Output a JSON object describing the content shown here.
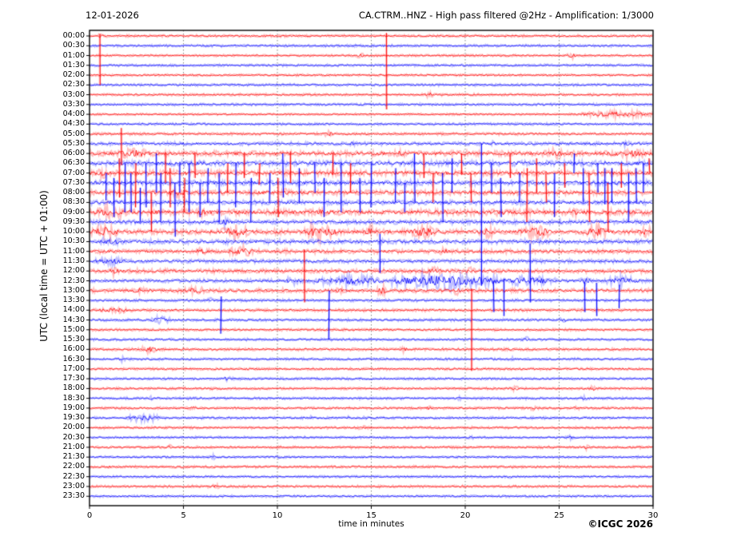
{
  "header": {
    "date": "12-01-2026",
    "title": "CA.CTRM..HNZ - High pass filtered @2Hz - Amplification: 1/3000"
  },
  "footer": {
    "copyright": "©ICGC 2026"
  },
  "axes": {
    "x_label": "time in minutes",
    "y_label": "UTC (local time = UTC + 01:00)",
    "x_ticks": [
      0,
      5,
      10,
      15,
      20,
      25,
      30
    ],
    "x_range": [
      0,
      30
    ],
    "grid_minutes": [
      5,
      10,
      15,
      20,
      25
    ],
    "grid_style": "dotted-vertical"
  },
  "colors": {
    "red": "#ff0000",
    "blue": "#0000ff",
    "axis": "#000000",
    "grid": "#666666",
    "background": "#ffffff"
  },
  "chart_data": {
    "type": "line",
    "subtype": "helicorder-seismogram",
    "station": "CA.CTRM..HNZ",
    "filter": "High pass filtered @2Hz",
    "amplification": "1/3000",
    "date": "12-01-2026",
    "minutes_per_line": 30,
    "line_color_alternation": [
      "red",
      "blue"
    ],
    "rows": [
      {
        "utc": "00:00",
        "color": "r",
        "noise": 1.0,
        "bursts": [
          [
            0.45,
            0.75,
            2.0
          ]
        ]
      },
      {
        "utc": "00:30",
        "color": "b",
        "noise": 1.0,
        "bursts": []
      },
      {
        "utc": "01:00",
        "color": "r",
        "noise": 0.9,
        "bursts": [
          [
            14.2,
            14.6,
            2.0
          ],
          [
            25.4,
            25.9,
            2.2
          ]
        ]
      },
      {
        "utc": "01:30",
        "color": "b",
        "noise": 1.0,
        "bursts": []
      },
      {
        "utc": "02:00",
        "color": "r",
        "noise": 0.9,
        "bursts": []
      },
      {
        "utc": "02:30",
        "color": "b",
        "noise": 1.0,
        "bursts": []
      },
      {
        "utc": "03:00",
        "color": "r",
        "noise": 1.0,
        "bursts": [
          [
            17.9,
            18.3,
            2.0
          ]
        ]
      },
      {
        "utc": "03:30",
        "color": "b",
        "noise": 1.0,
        "bursts": []
      },
      {
        "utc": "04:00",
        "color": "r",
        "noise": 0.8,
        "bursts": [
          [
            26.2,
            30,
            2.2
          ]
        ]
      },
      {
        "utc": "04:30",
        "color": "b",
        "noise": 1.0,
        "bursts": []
      },
      {
        "utc": "05:00",
        "color": "r",
        "noise": 1.1,
        "bursts": [
          [
            12.5,
            12.95,
            2.4
          ]
        ]
      },
      {
        "utc": "05:30",
        "color": "b",
        "noise": 1.5,
        "bursts": [
          [
            13.8,
            14.2,
            1.8
          ],
          [
            21.3,
            21.7,
            1.8
          ],
          [
            28.3,
            28.8,
            1.8
          ]
        ]
      },
      {
        "utc": "06:00",
        "color": "r",
        "noise": 2.3,
        "bursts": [
          [
            1.5,
            3.2,
            3.5
          ],
          [
            16.2,
            16.8,
            2.5
          ],
          [
            24.2,
            25.2,
            3.5
          ],
          [
            27.5,
            30,
            2.8
          ]
        ]
      },
      {
        "utc": "06:30",
        "color": "b",
        "noise": 2.4,
        "bursts": []
      },
      {
        "utc": "07:00",
        "color": "r",
        "noise": 2.4,
        "bursts": [
          [
            0.3,
            1.2,
            3.0
          ]
        ]
      },
      {
        "utc": "07:30",
        "color": "b",
        "noise": 2.2,
        "bursts": []
      },
      {
        "utc": "08:00",
        "color": "r",
        "noise": 2.1,
        "bursts": [
          [
            4.2,
            5.2,
            3.0
          ],
          [
            10.2,
            10.8,
            2.6
          ]
        ]
      },
      {
        "utc": "08:30",
        "color": "b",
        "noise": 2.0,
        "bursts": []
      },
      {
        "utc": "09:00",
        "color": "r",
        "noise": 2.6,
        "bursts": [
          [
            0.2,
            2.0,
            3.6
          ],
          [
            5.5,
            6.5,
            3.0
          ],
          [
            12.0,
            12.6,
            2.6
          ],
          [
            21.5,
            22.3,
            2.6
          ],
          [
            25.4,
            26.2,
            2.6
          ]
        ]
      },
      {
        "utc": "09:30",
        "color": "b",
        "noise": 1.9,
        "bursts": [
          [
            6.8,
            7.6,
            2.6
          ]
        ]
      },
      {
        "utc": "10:00",
        "color": "r",
        "noise": 2.2,
        "bursts": [
          [
            0.1,
            1.5,
            4.5
          ],
          [
            7.0,
            8.6,
            4.5
          ],
          [
            11.3,
            13.2,
            4.5
          ],
          [
            14.6,
            15.3,
            3.5
          ],
          [
            17.0,
            18.6,
            4.5
          ],
          [
            20.8,
            21.6,
            3.5
          ],
          [
            22.8,
            24.6,
            4.5
          ],
          [
            26.4,
            27.6,
            4.5
          ],
          [
            29.2,
            30,
            3.5
          ]
        ]
      },
      {
        "utc": "10:30",
        "color": "b",
        "noise": 2.0,
        "bursts": [
          [
            0.3,
            1.8,
            2.8
          ]
        ]
      },
      {
        "utc": "11:00",
        "color": "r",
        "noise": 1.8,
        "bursts": [
          [
            5.6,
            6.4,
            2.6
          ],
          [
            7.3,
            8.9,
            3.2
          ],
          [
            18.5,
            19.2,
            2.4
          ]
        ]
      },
      {
        "utc": "11:30",
        "color": "b",
        "noise": 1.6,
        "bursts": [
          [
            0.2,
            2.2,
            2.6
          ]
        ]
      },
      {
        "utc": "12:00",
        "color": "r",
        "noise": 1.8,
        "bursts": [
          [
            1.0,
            1.6,
            2.8
          ],
          [
            17.8,
            18.8,
            2.4
          ],
          [
            20.0,
            20.6,
            2.4
          ]
        ]
      },
      {
        "utc": "12:30",
        "color": "b",
        "noise": 1.5,
        "bursts": [
          [
            10.4,
            11.3,
            2.6
          ],
          [
            11.9,
            15.8,
            3.2
          ],
          [
            16.0,
            21.8,
            5.0
          ],
          [
            21.9,
            24.8,
            3.2
          ],
          [
            26.0,
            26.8,
            2.6
          ],
          [
            27.5,
            29.3,
            3.2
          ]
        ]
      },
      {
        "utc": "13:00",
        "color": "r",
        "noise": 1.7,
        "bursts": [
          [
            2.3,
            3.1,
            2.6
          ],
          [
            5.0,
            6.2,
            2.6
          ],
          [
            13.1,
            13.5,
            2.4
          ],
          [
            15.3,
            15.9,
            3.2
          ],
          [
            19.3,
            19.8,
            2.6
          ]
        ]
      },
      {
        "utc": "13:30",
        "color": "b",
        "noise": 1.1,
        "bursts": [
          [
            6.2,
            6.6,
            1.8
          ]
        ]
      },
      {
        "utc": "14:00",
        "color": "r",
        "noise": 1.2,
        "bursts": [
          [
            0.3,
            2.5,
            1.8
          ]
        ]
      },
      {
        "utc": "14:30",
        "color": "b",
        "noise": 1.1,
        "bursts": [
          [
            3.3,
            4.3,
            2.6
          ],
          [
            25.0,
            25.5,
            1.8
          ]
        ]
      },
      {
        "utc": "15:00",
        "color": "r",
        "noise": 1.0,
        "bursts": []
      },
      {
        "utc": "15:30",
        "color": "b",
        "noise": 1.0,
        "bursts": [
          [
            23.0,
            23.5,
            1.6
          ]
        ]
      },
      {
        "utc": "16:00",
        "color": "r",
        "noise": 1.1,
        "bursts": [
          [
            2.8,
            3.6,
            2.6
          ],
          [
            16.5,
            17.0,
            1.8
          ]
        ]
      },
      {
        "utc": "16:30",
        "color": "b",
        "noise": 1.0,
        "bursts": [
          [
            1.4,
            1.9,
            1.8
          ],
          [
            22.2,
            22.6,
            1.6
          ]
        ]
      },
      {
        "utc": "17:00",
        "color": "r",
        "noise": 1.0,
        "bursts": []
      },
      {
        "utc": "17:30",
        "color": "b",
        "noise": 1.0,
        "bursts": [
          [
            7.1,
            7.5,
            1.8
          ]
        ]
      },
      {
        "utc": "18:00",
        "color": "r",
        "noise": 1.0,
        "bursts": [
          [
            22.5,
            22.9,
            1.8
          ],
          [
            26.6,
            27.0,
            1.8
          ]
        ]
      },
      {
        "utc": "18:30",
        "color": "b",
        "noise": 1.0,
        "bursts": [
          [
            3.1,
            3.5,
            1.8
          ],
          [
            19.4,
            19.8,
            1.4
          ],
          [
            26.1,
            26.5,
            1.4
          ]
        ]
      },
      {
        "utc": "19:00",
        "color": "r",
        "noise": 1.0,
        "bursts": [
          [
            5.3,
            5.7,
            1.4
          ],
          [
            17.8,
            18.2,
            1.6
          ],
          [
            23.4,
            23.8,
            1.6
          ],
          [
            25.7,
            26.1,
            1.4
          ]
        ]
      },
      {
        "utc": "19:30",
        "color": "b",
        "noise": 1.0,
        "bursts": [
          [
            1.9,
            3.8,
            2.4
          ],
          [
            11.6,
            12.0,
            1.3
          ],
          [
            13.6,
            14.0,
            1.3
          ],
          [
            14.5,
            14.9,
            1.3
          ]
        ]
      },
      {
        "utc": "20:00",
        "color": "r",
        "noise": 1.0,
        "bursts": [
          [
            14.3,
            14.7,
            1.6
          ]
        ]
      },
      {
        "utc": "20:30",
        "color": "b",
        "noise": 0.9,
        "bursts": [
          [
            20.1,
            20.5,
            1.3
          ],
          [
            25.4,
            25.8,
            1.3
          ]
        ]
      },
      {
        "utc": "21:00",
        "color": "r",
        "noise": 1.0,
        "bursts": [
          [
            4.0,
            4.4,
            1.8
          ],
          [
            26.2,
            26.6,
            1.6
          ]
        ]
      },
      {
        "utc": "21:30",
        "color": "b",
        "noise": 0.9,
        "bursts": [
          [
            6.4,
            6.8,
            1.3
          ],
          [
            9.9,
            10.3,
            1.3
          ]
        ]
      },
      {
        "utc": "22:00",
        "color": "r",
        "noise": 1.0,
        "bursts": [
          [
            0.9,
            1.3,
            1.6
          ]
        ]
      },
      {
        "utc": "22:30",
        "color": "b",
        "noise": 0.9,
        "bursts": [
          [
            22.2,
            22.6,
            1.3
          ]
        ]
      },
      {
        "utc": "23:00",
        "color": "r",
        "noise": 1.0,
        "bursts": [
          [
            6.5,
            6.9,
            1.6
          ]
        ]
      },
      {
        "utc": "23:30",
        "color": "b",
        "noise": 0.9,
        "bursts": []
      }
    ],
    "spikes": [
      [
        0.55,
        1,
        1.2,
        4.0,
        "r"
      ],
      [
        15.8,
        2,
        2.3,
        5.5,
        "r"
      ],
      [
        1.7,
        11,
        1.6,
        2.2,
        "r"
      ],
      [
        20.85,
        18,
        7.0,
        7.5,
        "b"
      ],
      [
        11.45,
        24,
        2.2,
        3.2,
        "r"
      ],
      [
        20.35,
        30,
        4.2,
        4.2,
        "r"
      ],
      [
        12.75,
        28,
        2.0,
        3.0,
        "b"
      ],
      [
        7.0,
        28,
        1.4,
        2.4,
        "b"
      ],
      [
        21.5,
        26,
        1.0,
        2.2,
        "b"
      ],
      [
        22.05,
        26,
        1.2,
        2.6,
        "b"
      ],
      [
        26.35,
        26,
        0.8,
        2.2,
        "b"
      ],
      [
        27.0,
        26,
        0.8,
        2.6,
        "b"
      ],
      [
        28.2,
        26,
        0.6,
        1.8,
        "b"
      ],
      [
        0.9,
        15,
        1.0,
        1.8,
        "b"
      ],
      [
        1.3,
        16,
        1.5,
        2.5,
        "b"
      ],
      [
        1.6,
        14,
        1.5,
        2.5,
        "r"
      ],
      [
        1.9,
        15,
        2.0,
        3.0,
        "b"
      ],
      [
        2.2,
        16,
        2.0,
        2.0,
        "b"
      ],
      [
        2.45,
        14,
        1.0,
        3.5,
        "r"
      ],
      [
        2.7,
        17,
        1.5,
        2.0,
        "b"
      ],
      [
        3.0,
        15,
        2.0,
        2.5,
        "b"
      ],
      [
        3.3,
        17,
        1.0,
        3.0,
        "r"
      ],
      [
        3.55,
        14,
        2.0,
        2.0,
        "b"
      ],
      [
        3.8,
        16,
        2.0,
        3.0,
        "b"
      ],
      [
        4.05,
        13,
        1.0,
        2.0,
        "r"
      ],
      [
        4.3,
        15,
        1.5,
        2.5,
        "r"
      ],
      [
        4.55,
        17,
        2.0,
        3.5,
        "b"
      ],
      [
        4.8,
        14,
        1.0,
        2.0,
        "b"
      ],
      [
        5.05,
        16,
        1.5,
        2.0,
        "r"
      ],
      [
        5.3,
        15,
        2.0,
        3.0,
        "b"
      ],
      [
        5.6,
        13,
        1.0,
        1.5,
        "r"
      ],
      [
        5.9,
        16,
        1.0,
        2.5,
        "b"
      ],
      [
        6.3,
        15,
        1.5,
        2.0,
        "b"
      ],
      [
        6.9,
        16,
        2.0,
        3.0,
        "b"
      ],
      [
        7.35,
        14,
        1.0,
        2.0,
        "r"
      ],
      [
        7.8,
        15,
        2.0,
        2.5,
        "b"
      ],
      [
        8.25,
        13,
        1.0,
        1.5,
        "r"
      ],
      [
        8.6,
        16,
        1.5,
        3.0,
        "b"
      ],
      [
        9.05,
        14,
        1.0,
        1.2,
        "r"
      ],
      [
        9.6,
        15,
        1.0,
        2.0,
        "b"
      ],
      [
        10.05,
        16,
        1.5,
        2.5,
        "r"
      ],
      [
        10.3,
        14,
        2.0,
        2.5,
        "b"
      ],
      [
        10.7,
        13,
        1.2,
        2.0,
        "r"
      ],
      [
        11.15,
        15,
        1.5,
        2.0,
        "b"
      ],
      [
        12.0,
        14,
        1.0,
        2.0,
        "b"
      ],
      [
        12.5,
        16,
        1.5,
        2.5,
        "b"
      ],
      [
        12.95,
        13,
        1.0,
        1.2,
        "r"
      ],
      [
        13.4,
        15,
        2.0,
        3.0,
        "b"
      ],
      [
        13.9,
        14,
        1.0,
        2.0,
        "r"
      ],
      [
        14.4,
        16,
        1.5,
        2.0,
        "b"
      ],
      [
        15.0,
        15,
        2.0,
        2.5,
        "b"
      ],
      [
        15.45,
        22,
        1.8,
        2.2,
        "b"
      ],
      [
        16.3,
        15,
        1.5,
        2.0,
        "b"
      ],
      [
        16.8,
        16,
        1.0,
        2.0,
        "b"
      ],
      [
        17.3,
        14,
        2.0,
        3.0,
        "b"
      ],
      [
        17.8,
        13,
        1.0,
        1.5,
        "r"
      ],
      [
        18.3,
        15,
        1.0,
        2.0,
        "r"
      ],
      [
        18.8,
        16,
        2.0,
        3.0,
        "b"
      ],
      [
        19.3,
        14,
        1.5,
        2.0,
        "b"
      ],
      [
        19.8,
        13,
        1.0,
        1.2,
        "r"
      ],
      [
        20.3,
        15,
        1.0,
        2.0,
        "r"
      ],
      [
        21.4,
        14,
        1.0,
        2.0,
        "b"
      ],
      [
        21.9,
        16,
        1.5,
        2.5,
        "b"
      ],
      [
        22.4,
        13,
        1.0,
        1.5,
        "r"
      ],
      [
        22.9,
        15,
        1.0,
        2.0,
        "b"
      ],
      [
        23.3,
        16,
        2.5,
        3.0,
        "r"
      ],
      [
        23.45,
        24,
        2.8,
        3.2,
        "b"
      ],
      [
        23.8,
        14,
        1.5,
        2.0,
        "r"
      ],
      [
        24.3,
        15,
        1.0,
        2.0,
        "r"
      ],
      [
        24.75,
        16,
        2.0,
        2.5,
        "b"
      ],
      [
        25.3,
        14,
        1.0,
        1.5,
        "r"
      ],
      [
        25.8,
        13,
        1.0,
        1.0,
        "b"
      ],
      [
        26.3,
        15,
        1.5,
        2.0,
        "b"
      ],
      [
        26.6,
        16,
        2.0,
        3.0,
        "r"
      ],
      [
        27.05,
        14,
        1.0,
        2.0,
        "b"
      ],
      [
        27.45,
        15,
        1.5,
        2.2,
        "b"
      ],
      [
        27.6,
        17,
        2.0,
        3.0,
        "r"
      ],
      [
        27.8,
        15,
        1.5,
        2.0,
        "b"
      ],
      [
        28.3,
        14,
        1.0,
        1.5,
        "r"
      ],
      [
        28.7,
        16,
        2.0,
        3.0,
        "b"
      ],
      [
        29.1,
        15,
        1.5,
        2.0,
        "b"
      ],
      [
        29.5,
        14,
        1.0,
        2.0,
        "b"
      ],
      [
        29.8,
        13,
        0.5,
        1.0,
        "r"
      ]
    ]
  }
}
